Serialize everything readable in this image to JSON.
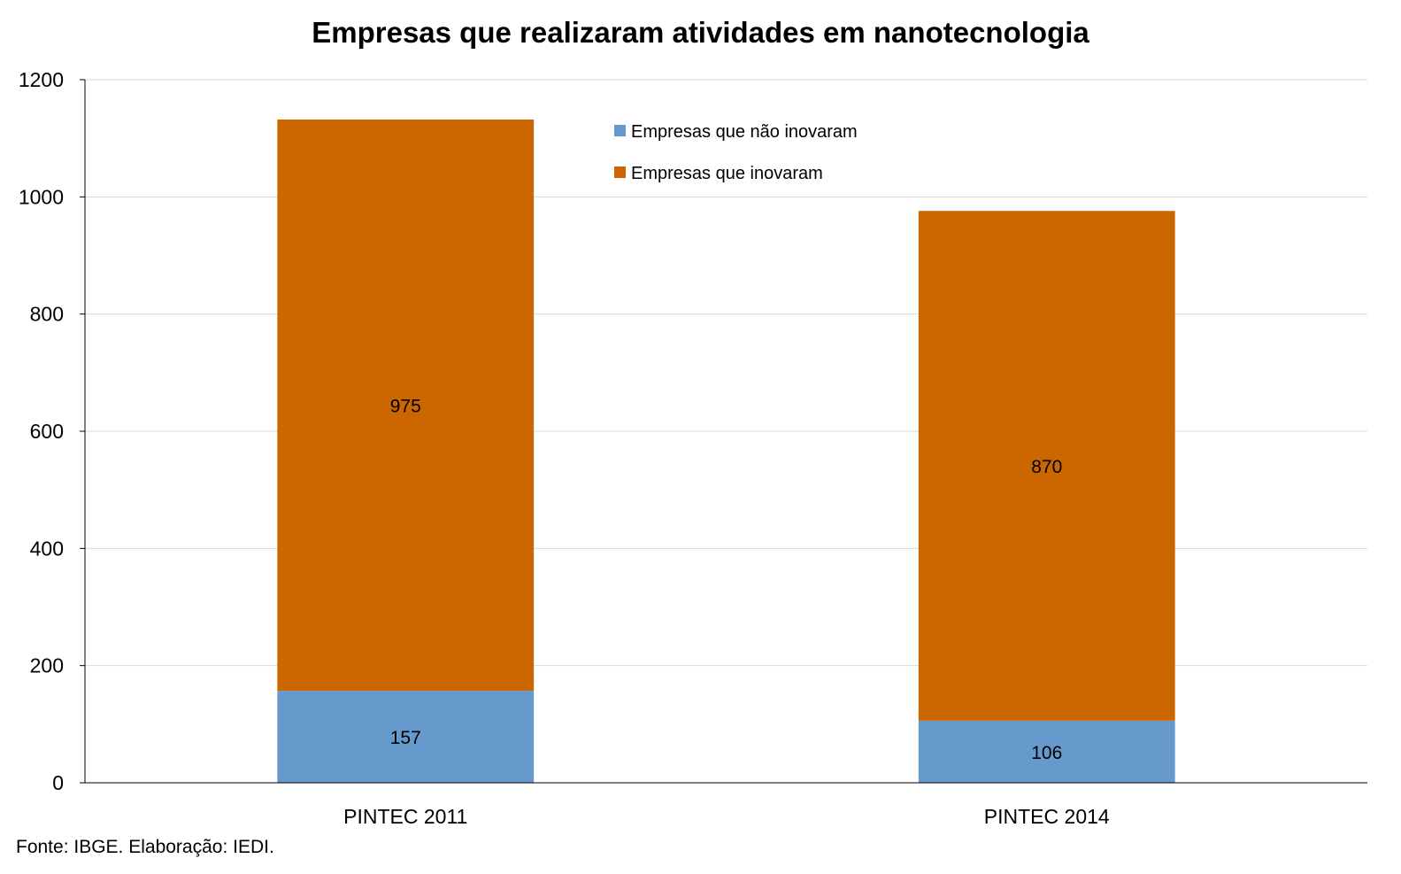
{
  "chart_data": {
    "type": "bar",
    "stacked": true,
    "title": "Empresas que realizaram atividades em nanotecnologia",
    "categories": [
      "PINTEC 2011",
      "PINTEC 2014"
    ],
    "series": [
      {
        "name": "Empresas que não inovaram",
        "values": [
          157,
          106
        ],
        "color": "#6699cc"
      },
      {
        "name": "Empresas que inovaram",
        "values": [
          975,
          870
        ],
        "color": "#cc6600"
      }
    ],
    "ylim": [
      0,
      1200
    ],
    "yticks": [
      0,
      200,
      400,
      600,
      800,
      1000,
      1200
    ],
    "grid": true,
    "legend_position": "top-center",
    "legend_order": [
      0,
      1
    ]
  },
  "source_note": "Fonte: IBGE. Elaboração: IEDI."
}
